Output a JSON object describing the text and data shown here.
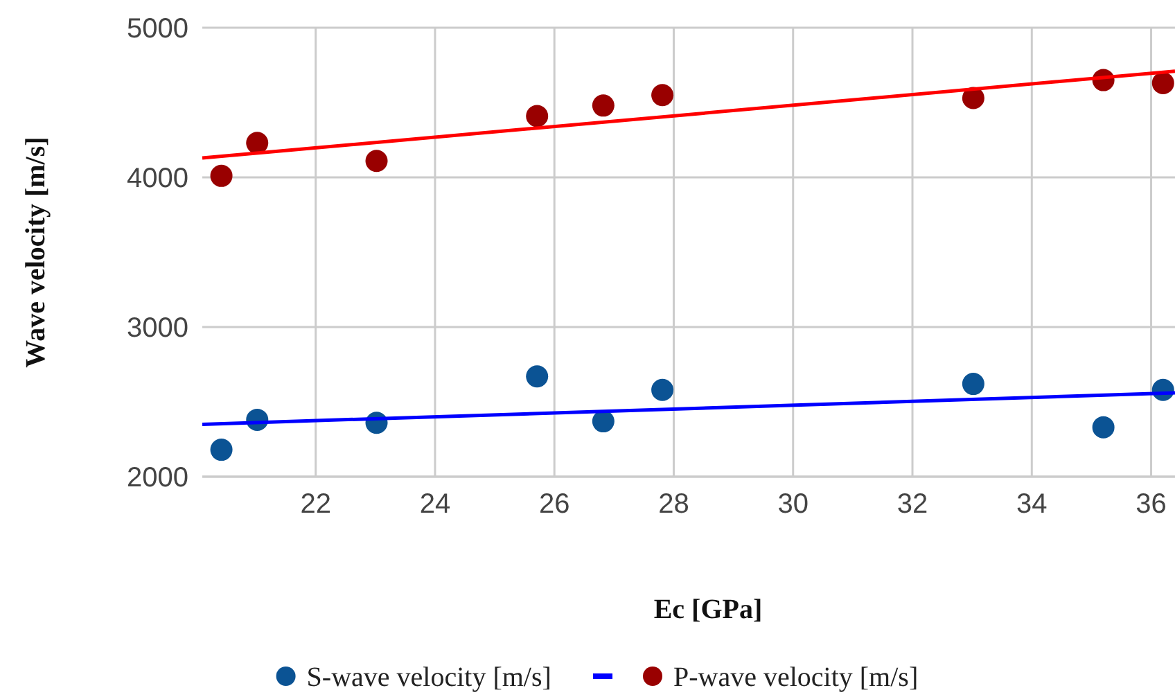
{
  "chart_data": {
    "type": "scatter",
    "xlabel": "Ec [GPa]",
    "ylabel": "Wave velocity [m/s]",
    "xlim": [
      20.1,
      36.4
    ],
    "xticks": [
      22,
      24,
      26,
      28,
      30,
      32,
      34,
      36
    ],
    "ylim": [
      2000,
      5000
    ],
    "yticks": [
      2000,
      3000,
      4000,
      5000
    ],
    "grid": true,
    "legend": "bottom",
    "series": [
      {
        "name": "S-wave velocity [m/s]",
        "color": "#0b5394",
        "marker": "circle",
        "x": [
          20.42,
          21.02,
          23.02,
          25.71,
          26.82,
          27.81,
          33.02,
          35.2,
          36.2
        ],
        "values": [
          2180,
          2380,
          2360,
          2670,
          2370,
          2580,
          2620,
          2330,
          2580
        ]
      },
      {
        "type": "line",
        "color": "#0000ff",
        "marker": "none",
        "x": [
          20.1,
          36.4
        ],
        "values": [
          2350,
          2560
        ]
      },
      {
        "name": "P-wave velocity [m/s]",
        "color": "#990000",
        "marker": "circle",
        "x": [
          20.42,
          21.02,
          23.02,
          25.71,
          26.82,
          27.81,
          33.02,
          35.2,
          36.2
        ],
        "values": [
          4010,
          4230,
          4110,
          4410,
          4480,
          4550,
          4530,
          4650,
          4630
        ]
      },
      {
        "type": "line",
        "color": "#ff0000",
        "marker": "none",
        "x": [
          20.1,
          36.4
        ],
        "values": [
          4130,
          4710
        ]
      }
    ]
  }
}
